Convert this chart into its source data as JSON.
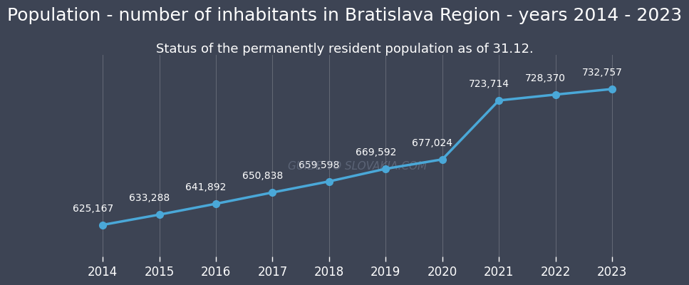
{
  "title": "Population - number of inhabitants in Bratislava Region - years 2014 - 2023",
  "subtitle": "Status of the permanently resident population as of 31.12.",
  "years": [
    2014,
    2015,
    2016,
    2017,
    2018,
    2019,
    2020,
    2021,
    2022,
    2023
  ],
  "values": [
    625167,
    633288,
    641892,
    650838,
    659598,
    669592,
    677024,
    723714,
    728370,
    732757
  ],
  "background_color": "#3d4454",
  "plot_bg_color": "#3d4454",
  "line_color": "#4aa8d8",
  "marker_color": "#4aa8d8",
  "grid_color": "#ffffff",
  "text_color": "#ffffff",
  "title_fontsize": 18,
  "subtitle_fontsize": 13,
  "label_fontsize": 10,
  "tick_fontsize": 12,
  "annotation_fontsize": 10,
  "watermark_text": "GUIDE TO SLOVAKIA.COM",
  "watermark_color": "#7a8499",
  "ylim_min": 600000,
  "ylim_max": 760000
}
